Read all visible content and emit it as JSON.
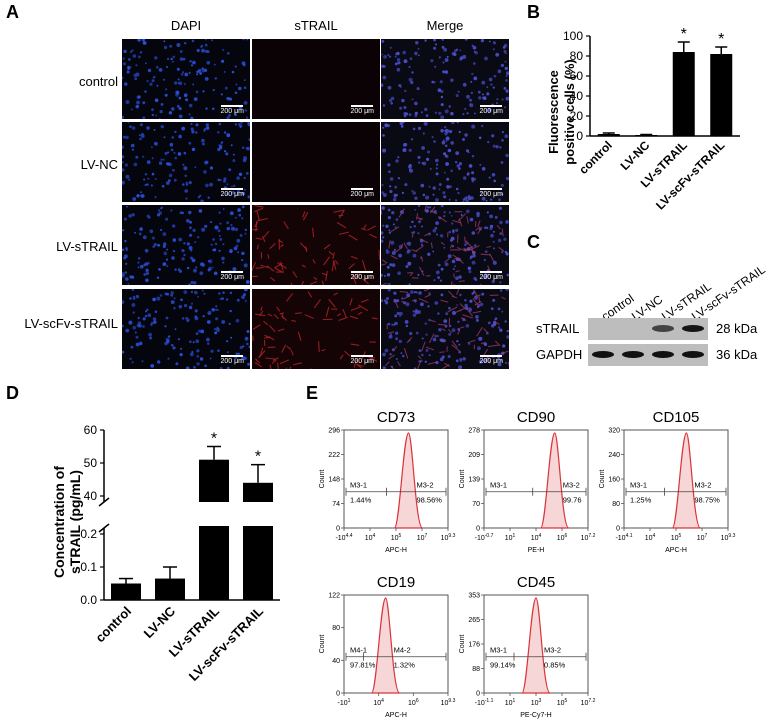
{
  "panels": {
    "a": "A",
    "b": "B",
    "c": "C",
    "d": "D",
    "e": "E"
  },
  "panel_a": {
    "columns": [
      "DAPI",
      "sTRAIL",
      "Merge"
    ],
    "rows": [
      "control",
      "LV-NC",
      "LV-sTRAIL",
      "LV-scFv-sTRAIL"
    ],
    "scale_label": "200 μm"
  },
  "panel_c": {
    "lanes": [
      "control",
      "LV-NC",
      "LV-sTRAIL",
      "LV-scFv-sTRAIL"
    ],
    "rows": [
      {
        "protein": "sTRAIL",
        "size": "28 kDa",
        "intensity": [
          0,
          0,
          0.55,
          0.95
        ]
      },
      {
        "protein": "GAPDH",
        "size": "36 kDa",
        "intensity": [
          1,
          1,
          1,
          1
        ]
      }
    ]
  },
  "chart_data": [
    {
      "id": "B",
      "type": "bar",
      "categories": [
        "control",
        "LV-NC",
        "LV-sTRAIL",
        "LV-scFv-sTRAIL"
      ],
      "values": [
        2,
        1,
        84,
        82
      ],
      "errors": [
        1,
        0.5,
        10,
        7
      ],
      "significance": [
        "",
        "",
        "*",
        "*"
      ],
      "ylabel": "Fluorescence positive cells (%)",
      "ylabel_lines": [
        "Fluorescence",
        "positive cells (%)"
      ],
      "ylim": [
        0,
        100
      ],
      "yticks": [
        0,
        20,
        40,
        60,
        80,
        100
      ]
    },
    {
      "id": "D",
      "type": "bar",
      "categories": [
        "control",
        "LV-NC",
        "LV-sTRAIL",
        "LV-scFv-sTRAIL"
      ],
      "values": [
        0.05,
        0.065,
        51,
        44
      ],
      "errors": [
        0.015,
        0.035,
        4,
        5.5
      ],
      "significance": [
        "",
        "",
        "*",
        "*"
      ],
      "ylabel": "Concentration of sTRAIL (pg/mL)",
      "ylabel_lines": [
        "Concentration of",
        "sTRAIL (pg/mL)"
      ],
      "axis_break": true,
      "lower_ylim": [
        0,
        0.1
      ],
      "lower_yticks": [
        "0.0",
        "0.1"
      ],
      "lower_yticks_full": [
        "0.0",
        "0.1",
        "0.2"
      ],
      "upper_ylim": [
        40,
        60
      ],
      "upper_yticks": [
        "40",
        "50",
        "60"
      ]
    },
    {
      "id": "E-CD73",
      "type": "area",
      "title": "CD73",
      "xlabel": "APC-H",
      "yticks": [
        "0",
        "74",
        "148",
        "222",
        "296"
      ],
      "xticks": [
        "-10^4.4",
        "10^4",
        "10^5",
        "10^7",
        "10^9.3"
      ],
      "gates": [
        {
          "name": "M3-1",
          "percent": "1.44%"
        },
        {
          "name": "M3-2",
          "percent": "98.56%"
        }
      ],
      "peak_position": 0.62
    },
    {
      "id": "E-CD90",
      "type": "area",
      "title": "CD90",
      "xlabel": "PE-H",
      "yticks": [
        "0",
        "70",
        "139",
        "209",
        "278"
      ],
      "xticks": [
        "-10^-0.7",
        "10^1",
        "10^4",
        "10^6",
        "10^7.2"
      ],
      "gates": [
        {
          "name": "M3-1",
          "percent": ""
        },
        {
          "name": "M3-2",
          "percent": "99.76"
        }
      ],
      "peak_position": 0.68
    },
    {
      "id": "E-CD105",
      "type": "area",
      "title": "CD105",
      "xlabel": "APC-H",
      "yticks": [
        "0",
        "80",
        "160",
        "240",
        "320"
      ],
      "xticks": [
        "-10^4.1",
        "10^4",
        "10^5",
        "10^7",
        "10^9.3"
      ],
      "gates": [
        {
          "name": "M3-1",
          "percent": "1.25%"
        },
        {
          "name": "M3-2",
          "percent": "98.75%"
        }
      ],
      "peak_position": 0.6
    },
    {
      "id": "E-CD19",
      "type": "area",
      "title": "CD19",
      "xlabel": "APC-H",
      "yticks": [
        "0",
        "40",
        "80",
        "122"
      ],
      "xticks": [
        "-10^1",
        "10^4",
        "10^6",
        "10^9.3"
      ],
      "gates": [
        {
          "name": "M4-1",
          "percent": "97.81%"
        },
        {
          "name": "M4-2",
          "percent": "1.32%"
        }
      ],
      "peak_position": 0.4
    },
    {
      "id": "E-CD45",
      "type": "area",
      "title": "CD45",
      "xlabel": "PE-Cy7-H",
      "yticks": [
        "0",
        "88",
        "176",
        "265",
        "353"
      ],
      "xticks": [
        "-10^-1.1",
        "10^1",
        "10^3",
        "10^5",
        "10^7.2"
      ],
      "gates": [
        {
          "name": "M3-1",
          "percent": "99.14%"
        },
        {
          "name": "M3-2",
          "percent": "0.85%"
        }
      ],
      "peak_position": 0.5
    }
  ],
  "colors": {
    "dapi": "#2a4fd8",
    "strail": "#c0262b",
    "flow_fill": "#f6d6d6",
    "flow_line": "#d9343a"
  }
}
